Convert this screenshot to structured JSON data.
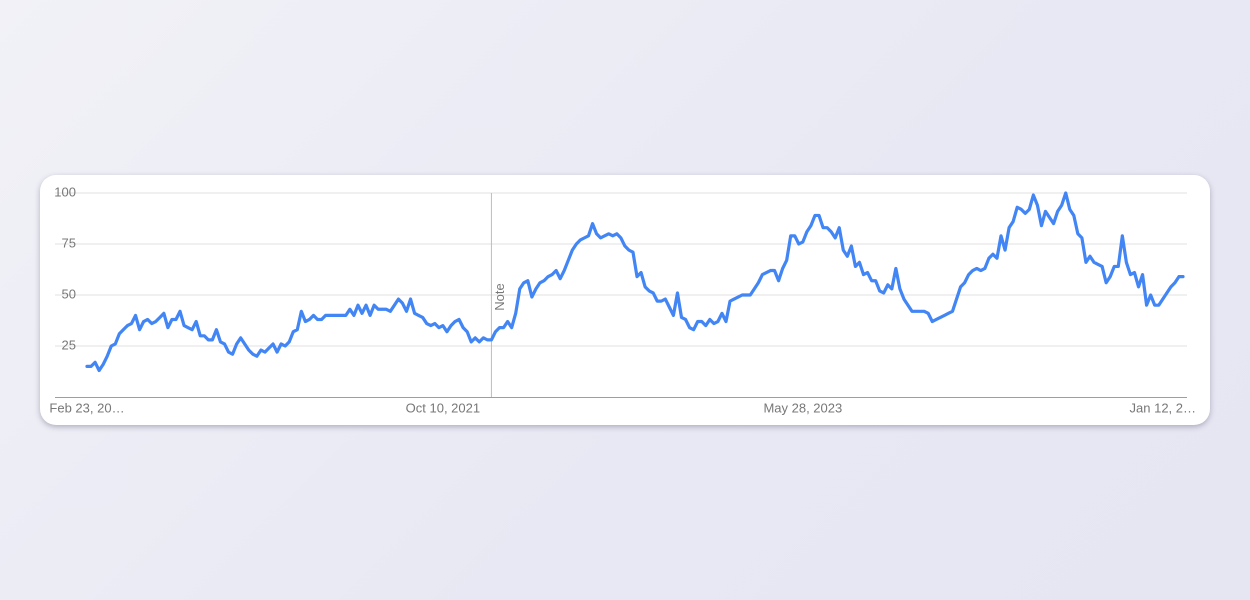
{
  "chart_data": {
    "type": "line",
    "series": [
      {
        "color": "#4285f4",
        "values": [
          15,
          15,
          17,
          13,
          16,
          20,
          25,
          26,
          31,
          33,
          35,
          36,
          40,
          33,
          37,
          38,
          36,
          37,
          39,
          41,
          34,
          38,
          38,
          42,
          35,
          34,
          33,
          37,
          30,
          30,
          28,
          28,
          33,
          27,
          26,
          22,
          21,
          26,
          29,
          26,
          23,
          21,
          20,
          23,
          22,
          24,
          26,
          22,
          26,
          25,
          27,
          32,
          33,
          42,
          37,
          38,
          40,
          38,
          38,
          40,
          40,
          40,
          40,
          40,
          40,
          43,
          40,
          45,
          41,
          45,
          40,
          45,
          43,
          43,
          43,
          42,
          45,
          48,
          46,
          42,
          48,
          41,
          40,
          39,
          36,
          35,
          36,
          34,
          35,
          32,
          35,
          37,
          38,
          34,
          32,
          27,
          29,
          27,
          29,
          28,
          28,
          32,
          34,
          34,
          37,
          34,
          41,
          53,
          56,
          57,
          49,
          53,
          56,
          57,
          59,
          60,
          62,
          58,
          62,
          67,
          72,
          75,
          77,
          78,
          79,
          85,
          80,
          78,
          79,
          80,
          79,
          80,
          78,
          74,
          72,
          71,
          59,
          61,
          54,
          52,
          51,
          47,
          47,
          48,
          44,
          40,
          51,
          39,
          38,
          34,
          33,
          37,
          37,
          35,
          38,
          36,
          37,
          41,
          37,
          47,
          48,
          49,
          50,
          50,
          50,
          53,
          56,
          60,
          61,
          62,
          62,
          57,
          63,
          67,
          79,
          79,
          75,
          76,
          81,
          84,
          89,
          89,
          83,
          83,
          81,
          78,
          83,
          72,
          69,
          74,
          64,
          66,
          60,
          61,
          57,
          57,
          52,
          51,
          55,
          53,
          63,
          53,
          48,
          45,
          42,
          42,
          42,
          42,
          41,
          37,
          38,
          39,
          40,
          41,
          42,
          48,
          54,
          56,
          60,
          62,
          63,
          62,
          63,
          68,
          70,
          68,
          79,
          72,
          83,
          86,
          93,
          92,
          90,
          92,
          99,
          94,
          84,
          91,
          88,
          85,
          91,
          94,
          100,
          92,
          89,
          80,
          78,
          66,
          69,
          66,
          65,
          64,
          56,
          59,
          64,
          64,
          79,
          66,
          60,
          61,
          54,
          60,
          45,
          50,
          45,
          45,
          48,
          51,
          54,
          56,
          59,
          59
        ]
      }
    ],
    "xlim": [
      0,
      271
    ],
    "xticks": [
      {
        "value": 0,
        "label": "Feb 23, 20…"
      },
      {
        "value": 88,
        "label": "Oct 10, 2021"
      },
      {
        "value": 177,
        "label": "May 28, 2023"
      },
      {
        "value": 266,
        "label": "Jan 12, 2…"
      }
    ],
    "ylim": [
      0,
      100
    ],
    "yticks": [
      25,
      50,
      75,
      100
    ],
    "grid": true,
    "annotations": [
      {
        "label": "Note",
        "x": 100
      }
    ]
  }
}
